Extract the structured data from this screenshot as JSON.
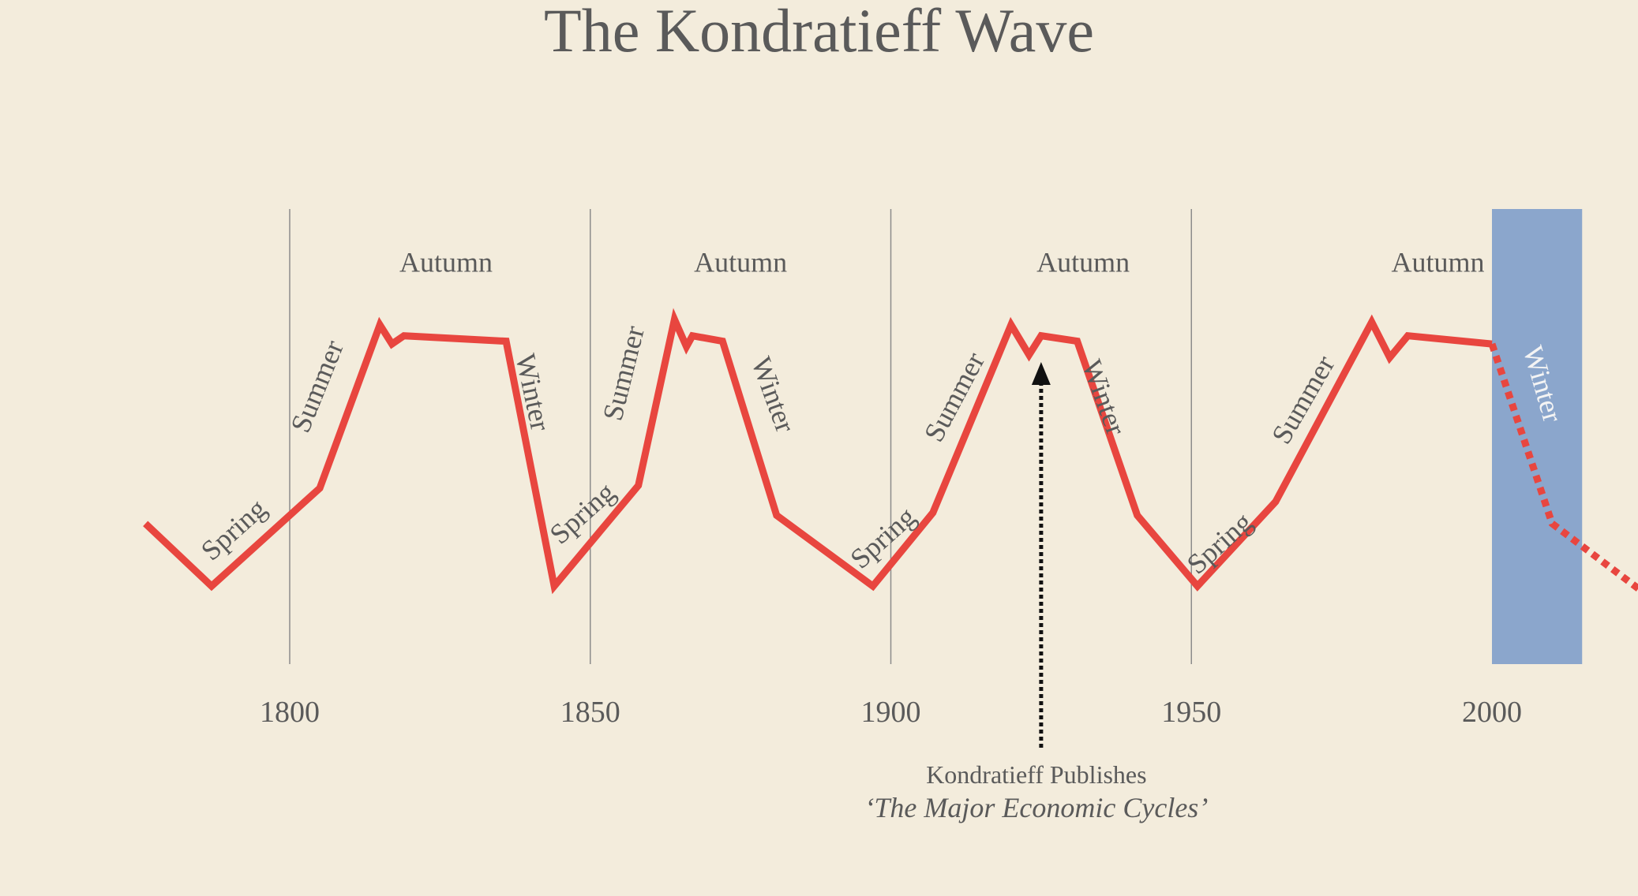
{
  "title": "The Kondratieff Wave",
  "colors": {
    "background": "#f3ecdc",
    "wave": "#e8463f",
    "highlight": "#8ba6cc",
    "gridline": "#8c8c8c",
    "text": "#5a5a5a",
    "arrow": "#111111"
  },
  "chart_data": {
    "type": "line",
    "title": "The Kondratieff Wave",
    "xlabel": "",
    "ylabel": "",
    "xlim": [
      1776,
      2025
    ],
    "x_ticks": [
      1800,
      1850,
      1900,
      1950,
      2000
    ],
    "x_tick_labels": [
      "1800",
      "1850",
      "1900",
      "1950",
      "2000"
    ],
    "grid": "vertical lines at tick years",
    "y_axis": "unlabeled",
    "ylim": [
      0,
      1
    ],
    "series": [
      {
        "style": "solid",
        "color": "#e8463f",
        "points": [
          [
            1776,
            0.25
          ],
          [
            1787,
            0.02
          ],
          [
            1805,
            0.38
          ],
          [
            1815,
            0.98
          ],
          [
            1817,
            0.91
          ],
          [
            1819,
            0.94
          ],
          [
            1836,
            0.92
          ],
          [
            1844,
            0.02
          ],
          [
            1858,
            0.39
          ],
          [
            1864,
            1.0
          ],
          [
            1866,
            0.9
          ],
          [
            1867,
            0.94
          ],
          [
            1872,
            0.92
          ],
          [
            1881,
            0.28
          ],
          [
            1897,
            0.02
          ],
          [
            1907,
            0.29
          ],
          [
            1920,
            0.98
          ],
          [
            1923,
            0.87
          ],
          [
            1925,
            0.94
          ],
          [
            1931,
            0.92
          ],
          [
            1941,
            0.28
          ],
          [
            1951,
            0.02
          ],
          [
            1964,
            0.33
          ],
          [
            1980,
            0.99
          ],
          [
            1983,
            0.86
          ],
          [
            1986,
            0.94
          ],
          [
            2000,
            0.91
          ]
        ]
      },
      {
        "style": "dotted",
        "color": "#e8463f",
        "points": [
          [
            2000,
            0.91
          ],
          [
            2010,
            0.25
          ],
          [
            2025,
            0.0
          ]
        ]
      }
    ],
    "season_labels": [
      {
        "text": "Spring",
        "x": 1791,
        "y": 0.22,
        "angle": -42
      },
      {
        "text": "Summer",
        "x": 1805,
        "y": 0.75,
        "angle": -68
      },
      {
        "text": "Autumn",
        "x": 1826,
        "y": 1.2,
        "angle": 0
      },
      {
        "text": "Winter",
        "x": 1840,
        "y": 0.73,
        "angle": 78
      },
      {
        "text": "Spring",
        "x": 1849,
        "y": 0.28,
        "angle": -42
      },
      {
        "text": "Summer",
        "x": 1856,
        "y": 0.8,
        "angle": -76
      },
      {
        "text": "Autumn",
        "x": 1875,
        "y": 1.2,
        "angle": 0
      },
      {
        "text": "Winter",
        "x": 1880,
        "y": 0.72,
        "angle": 70
      },
      {
        "text": "Spring",
        "x": 1899,
        "y": 0.19,
        "angle": -42
      },
      {
        "text": "Summer",
        "x": 1911,
        "y": 0.71,
        "angle": -62
      },
      {
        "text": "Autumn",
        "x": 1932,
        "y": 1.2,
        "angle": 0
      },
      {
        "text": "Winter",
        "x": 1935,
        "y": 0.71,
        "angle": 70
      },
      {
        "text": "Spring",
        "x": 1955,
        "y": 0.17,
        "angle": -42
      },
      {
        "text": "Summer",
        "x": 1969,
        "y": 0.7,
        "angle": -60
      },
      {
        "text": "Autumn",
        "x": 1991,
        "y": 1.2,
        "angle": 0
      },
      {
        "text": "Winter",
        "x": 2008,
        "y": 0.76,
        "angle": 74
      }
    ],
    "highlight_band": {
      "x_start": 2000,
      "x_end": 2015
    },
    "annotation": {
      "x": 1925,
      "line1": "Kondratieff Publishes",
      "line2": "‘The Major Economic Cycles’"
    }
  }
}
